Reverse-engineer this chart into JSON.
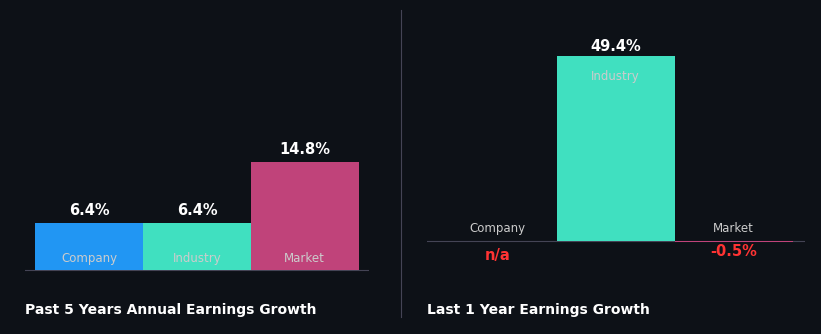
{
  "background_color": "#0d1117",
  "left_chart": {
    "title": "Past 5 Years Annual Earnings Growth",
    "bars": [
      {
        "label": "Company",
        "value": 6.4,
        "color": "#2196f3",
        "text_value": "6.4%"
      },
      {
        "label": "Industry",
        "value": 6.4,
        "color": "#40e0c0",
        "text_value": "6.4%"
      },
      {
        "label": "Market",
        "value": 14.8,
        "color": "#c0437a",
        "text_value": "14.8%"
      }
    ]
  },
  "right_chart": {
    "title": "Last 1 Year Earnings Growth",
    "bars": [
      {
        "label": "Company",
        "value": null,
        "color": "#2196f3",
        "text_value": "n/a",
        "text_color": "#ff3333",
        "is_na": true
      },
      {
        "label": "Industry",
        "value": 49.4,
        "color": "#40e0c0",
        "text_value": "49.4%",
        "text_color": "#ffffff",
        "is_na": false
      },
      {
        "label": "Market",
        "value": -0.5,
        "color": "#c0437a",
        "text_value": "-0.5%",
        "text_color": "#ff3333",
        "is_na": false
      }
    ]
  },
  "label_color": "#cccccc",
  "value_color": "#ffffff",
  "title_color": "#ffffff",
  "baseline_color": "#444455",
  "title_fontsize": 10,
  "label_fontsize": 8.5,
  "value_fontsize": 10.5
}
